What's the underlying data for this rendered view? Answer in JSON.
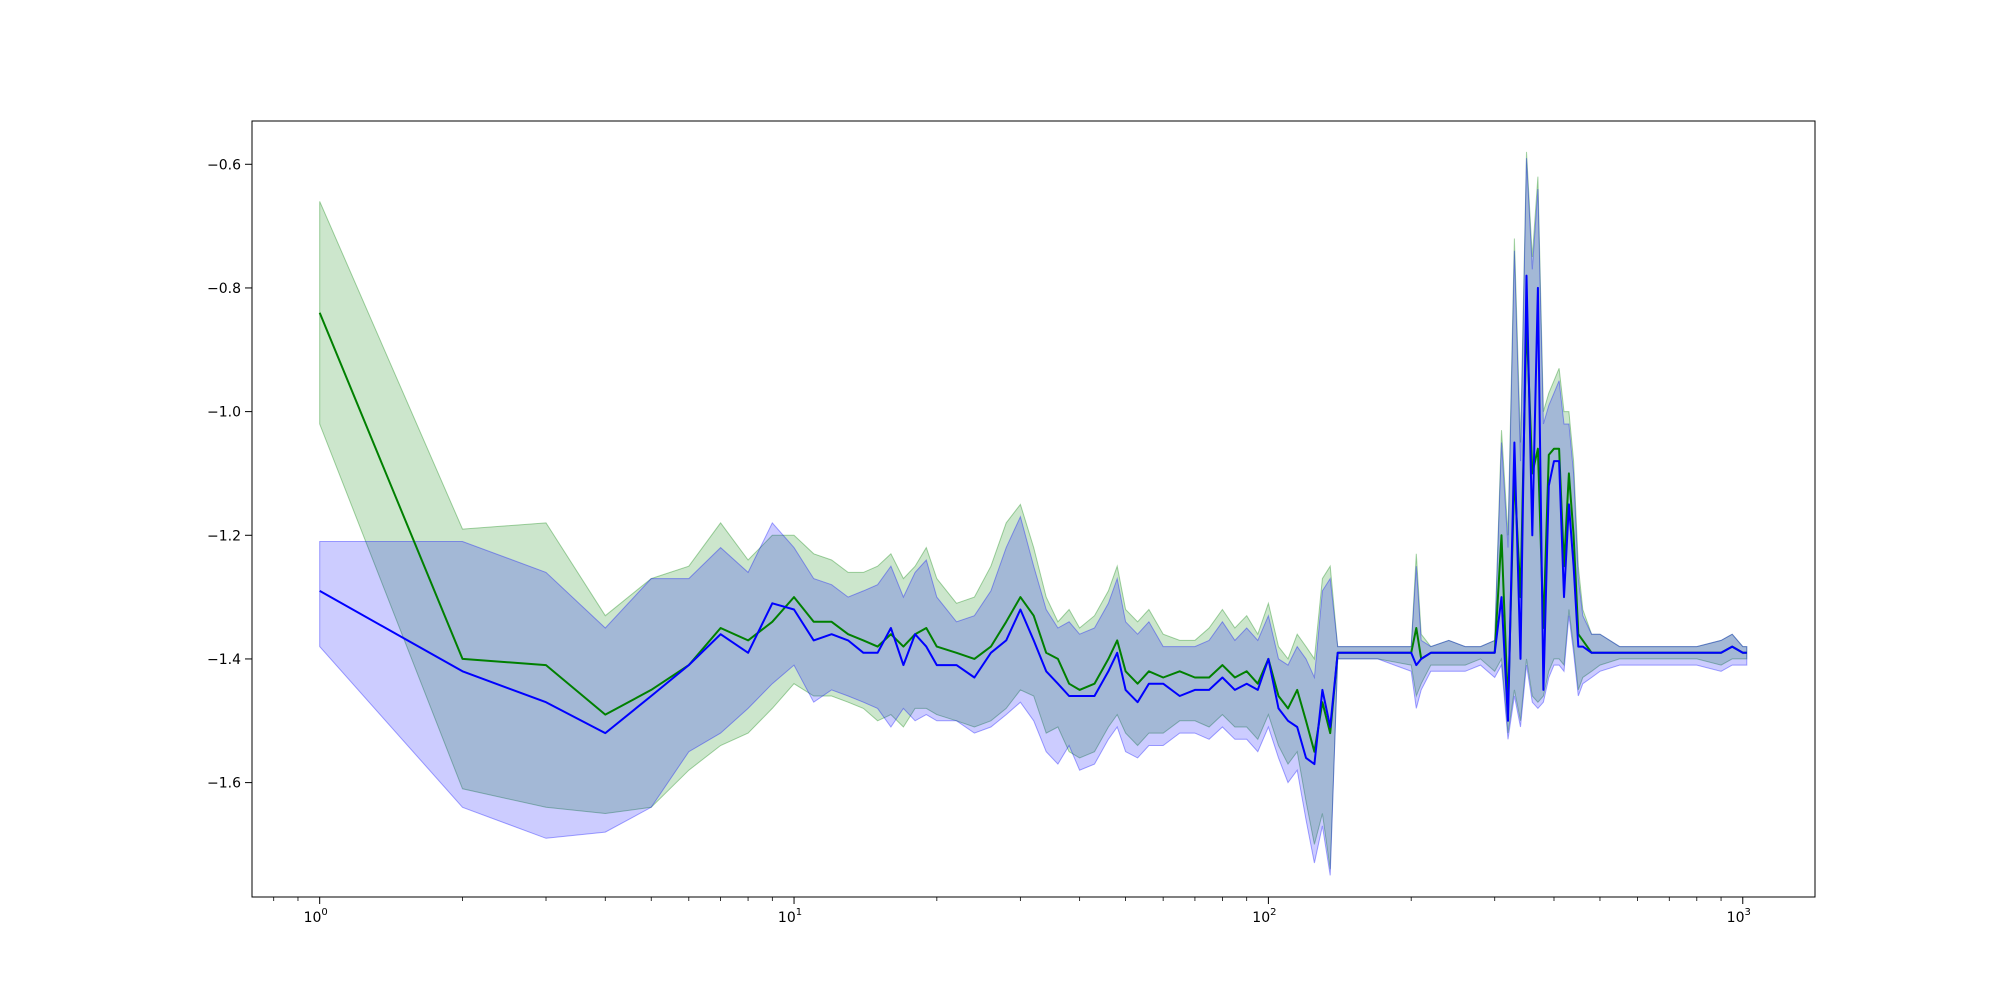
{
  "chart_data": {
    "type": "line",
    "title": "",
    "xlabel": "",
    "ylabel": "",
    "xscale": "log",
    "xlim": [
      0.72,
      1420
    ],
    "ylim": [
      -1.785,
      -0.53
    ],
    "x_ticks": [
      {
        "value": 1,
        "base": "10",
        "exp": "0"
      },
      {
        "value": 10,
        "base": "10",
        "exp": "1"
      },
      {
        "value": 100,
        "base": "10",
        "exp": "2"
      },
      {
        "value": 1000,
        "base": "10",
        "exp": "3"
      }
    ],
    "y_ticks": [
      {
        "value": -0.6,
        "label": "−0.6"
      },
      {
        "value": -0.8,
        "label": "−0.8"
      },
      {
        "value": -1.0,
        "label": "−1.0"
      },
      {
        "value": -1.2,
        "label": "−1.2"
      },
      {
        "value": -1.4,
        "label": "−1.4"
      },
      {
        "value": -1.6,
        "label": "−1.6"
      }
    ],
    "grid": false,
    "legend": "none",
    "series": [
      {
        "color": "#008000",
        "band_color": "#008000",
        "band_opacity": 0.2,
        "x": [
          1,
          2,
          3,
          4,
          5,
          6,
          7,
          8,
          9,
          10,
          11,
          12,
          13,
          14,
          15,
          16,
          17,
          18,
          19,
          20,
          22,
          24,
          26,
          28,
          30,
          32,
          34,
          36,
          38,
          40,
          43,
          46,
          48,
          50,
          53,
          56,
          60,
          65,
          70,
          75,
          80,
          85,
          90,
          95,
          100,
          105,
          110,
          115,
          120,
          125,
          130,
          135,
          140,
          150,
          170,
          200,
          205,
          210,
          220,
          240,
          260,
          280,
          300,
          310,
          320,
          330,
          340,
          350,
          360,
          370,
          380,
          390,
          400,
          410,
          420,
          430,
          440,
          450,
          460,
          480,
          500,
          550,
          600,
          700,
          800,
          900,
          950,
          1000,
          1020
        ],
        "y": [
          -0.84,
          -1.4,
          -1.41,
          -1.49,
          -1.45,
          -1.41,
          -1.35,
          -1.37,
          -1.34,
          -1.3,
          -1.34,
          -1.34,
          -1.36,
          -1.37,
          -1.38,
          -1.36,
          -1.38,
          -1.36,
          -1.35,
          -1.38,
          -1.39,
          -1.4,
          -1.38,
          -1.34,
          -1.3,
          -1.33,
          -1.39,
          -1.4,
          -1.44,
          -1.45,
          -1.44,
          -1.4,
          -1.37,
          -1.42,
          -1.44,
          -1.42,
          -1.43,
          -1.42,
          -1.43,
          -1.43,
          -1.41,
          -1.43,
          -1.42,
          -1.44,
          -1.4,
          -1.46,
          -1.48,
          -1.45,
          -1.5,
          -1.55,
          -1.47,
          -1.52,
          -1.39,
          -1.39,
          -1.39,
          -1.39,
          -1.35,
          -1.4,
          -1.39,
          -1.39,
          -1.39,
          -1.39,
          -1.39,
          -1.2,
          -1.48,
          -1.1,
          -1.3,
          -0.85,
          -1.1,
          -1.06,
          -1.35,
          -1.07,
          -1.06,
          -1.06,
          -1.25,
          -1.1,
          -1.2,
          -1.36,
          -1.37,
          -1.39,
          -1.39,
          -1.39,
          -1.39,
          -1.39,
          -1.39,
          -1.39,
          -1.38,
          -1.39,
          -1.39
        ],
        "upper": [
          -0.66,
          -1.19,
          -1.18,
          -1.33,
          -1.27,
          -1.25,
          -1.18,
          -1.24,
          -1.2,
          -1.2,
          -1.23,
          -1.24,
          -1.26,
          -1.26,
          -1.25,
          -1.23,
          -1.27,
          -1.25,
          -1.22,
          -1.27,
          -1.31,
          -1.3,
          -1.25,
          -1.18,
          -1.15,
          -1.22,
          -1.3,
          -1.34,
          -1.32,
          -1.35,
          -1.33,
          -1.29,
          -1.25,
          -1.32,
          -1.34,
          -1.32,
          -1.36,
          -1.37,
          -1.37,
          -1.35,
          -1.32,
          -1.35,
          -1.33,
          -1.36,
          -1.31,
          -1.38,
          -1.4,
          -1.36,
          -1.38,
          -1.4,
          -1.27,
          -1.25,
          -1.38,
          -1.38,
          -1.38,
          -1.38,
          -1.23,
          -1.36,
          -1.38,
          -1.37,
          -1.38,
          -1.38,
          -1.37,
          -1.03,
          -1.2,
          -0.72,
          -1.05,
          -0.58,
          -0.75,
          -0.62,
          -1.0,
          -0.97,
          -0.95,
          -0.93,
          -1.0,
          -1.0,
          -1.08,
          -1.25,
          -1.32,
          -1.36,
          -1.36,
          -1.38,
          -1.38,
          -1.38,
          -1.38,
          -1.37,
          -1.36,
          -1.38,
          -1.38
        ],
        "lower": [
          -1.02,
          -1.61,
          -1.64,
          -1.65,
          -1.64,
          -1.58,
          -1.54,
          -1.52,
          -1.48,
          -1.44,
          -1.46,
          -1.46,
          -1.47,
          -1.48,
          -1.5,
          -1.49,
          -1.51,
          -1.48,
          -1.48,
          -1.49,
          -1.5,
          -1.51,
          -1.5,
          -1.48,
          -1.45,
          -1.46,
          -1.52,
          -1.51,
          -1.55,
          -1.56,
          -1.55,
          -1.51,
          -1.49,
          -1.52,
          -1.54,
          -1.52,
          -1.52,
          -1.5,
          -1.5,
          -1.51,
          -1.49,
          -1.51,
          -1.51,
          -1.53,
          -1.49,
          -1.54,
          -1.57,
          -1.55,
          -1.63,
          -1.7,
          -1.65,
          -1.74,
          -1.4,
          -1.4,
          -1.4,
          -1.41,
          -1.46,
          -1.44,
          -1.41,
          -1.41,
          -1.41,
          -1.4,
          -1.42,
          -1.4,
          -1.52,
          -1.45,
          -1.5,
          -1.4,
          -1.46,
          -1.47,
          -1.46,
          -1.42,
          -1.4,
          -1.4,
          -1.41,
          -1.32,
          -1.38,
          -1.45,
          -1.43,
          -1.42,
          -1.41,
          -1.4,
          -1.4,
          -1.4,
          -1.4,
          -1.41,
          -1.4,
          -1.4,
          -1.4
        ]
      },
      {
        "color": "#0000ff",
        "band_color": "#0000ff",
        "band_opacity": 0.2,
        "x": [
          1,
          2,
          3,
          4,
          5,
          6,
          7,
          8,
          9,
          10,
          11,
          12,
          13,
          14,
          15,
          16,
          17,
          18,
          19,
          20,
          22,
          24,
          26,
          28,
          30,
          32,
          34,
          36,
          38,
          40,
          43,
          46,
          48,
          50,
          53,
          56,
          60,
          65,
          70,
          75,
          80,
          85,
          90,
          95,
          100,
          105,
          110,
          115,
          120,
          125,
          130,
          135,
          140,
          150,
          170,
          200,
          205,
          210,
          220,
          240,
          260,
          280,
          300,
          310,
          320,
          330,
          340,
          350,
          360,
          370,
          380,
          390,
          400,
          410,
          420,
          430,
          440,
          450,
          460,
          480,
          500,
          550,
          600,
          700,
          800,
          900,
          950,
          1000,
          1020
        ],
        "y": [
          -1.29,
          -1.42,
          -1.47,
          -1.52,
          -1.46,
          -1.41,
          -1.36,
          -1.39,
          -1.31,
          -1.32,
          -1.37,
          -1.36,
          -1.37,
          -1.39,
          -1.39,
          -1.35,
          -1.41,
          -1.36,
          -1.38,
          -1.41,
          -1.41,
          -1.43,
          -1.39,
          -1.37,
          -1.32,
          -1.37,
          -1.42,
          -1.44,
          -1.46,
          -1.46,
          -1.46,
          -1.42,
          -1.39,
          -1.45,
          -1.47,
          -1.44,
          -1.44,
          -1.46,
          -1.45,
          -1.45,
          -1.43,
          -1.45,
          -1.44,
          -1.45,
          -1.4,
          -1.48,
          -1.5,
          -1.51,
          -1.56,
          -1.57,
          -1.45,
          -1.51,
          -1.39,
          -1.39,
          -1.39,
          -1.39,
          -1.41,
          -1.4,
          -1.39,
          -1.39,
          -1.39,
          -1.39,
          -1.39,
          -1.3,
          -1.5,
          -1.05,
          -1.4,
          -0.78,
          -1.2,
          -0.8,
          -1.45,
          -1.12,
          -1.08,
          -1.08,
          -1.3,
          -1.15,
          -1.25,
          -1.38,
          -1.38,
          -1.39,
          -1.39,
          -1.39,
          -1.39,
          -1.39,
          -1.39,
          -1.39,
          -1.38,
          -1.39,
          -1.39
        ],
        "upper": [
          -1.21,
          -1.21,
          -1.26,
          -1.35,
          -1.27,
          -1.27,
          -1.22,
          -1.26,
          -1.18,
          -1.22,
          -1.27,
          -1.28,
          -1.3,
          -1.29,
          -1.28,
          -1.25,
          -1.3,
          -1.26,
          -1.24,
          -1.3,
          -1.34,
          -1.33,
          -1.29,
          -1.22,
          -1.17,
          -1.25,
          -1.32,
          -1.35,
          -1.34,
          -1.36,
          -1.35,
          -1.31,
          -1.27,
          -1.34,
          -1.36,
          -1.34,
          -1.38,
          -1.38,
          -1.38,
          -1.37,
          -1.34,
          -1.37,
          -1.35,
          -1.37,
          -1.33,
          -1.4,
          -1.41,
          -1.38,
          -1.4,
          -1.43,
          -1.29,
          -1.27,
          -1.38,
          -1.38,
          -1.38,
          -1.38,
          -1.25,
          -1.37,
          -1.38,
          -1.37,
          -1.38,
          -1.38,
          -1.37,
          -1.05,
          -1.22,
          -0.74,
          -1.08,
          -0.59,
          -0.77,
          -0.64,
          -1.02,
          -0.99,
          -0.97,
          -0.95,
          -1.02,
          -1.02,
          -1.1,
          -1.27,
          -1.33,
          -1.36,
          -1.36,
          -1.38,
          -1.38,
          -1.38,
          -1.38,
          -1.37,
          -1.36,
          -1.38,
          -1.38
        ],
        "lower": [
          -1.38,
          -1.64,
          -1.69,
          -1.68,
          -1.64,
          -1.55,
          -1.52,
          -1.48,
          -1.44,
          -1.41,
          -1.47,
          -1.45,
          -1.46,
          -1.47,
          -1.48,
          -1.51,
          -1.48,
          -1.5,
          -1.49,
          -1.5,
          -1.5,
          -1.52,
          -1.51,
          -1.49,
          -1.47,
          -1.5,
          -1.55,
          -1.57,
          -1.54,
          -1.58,
          -1.57,
          -1.53,
          -1.51,
          -1.55,
          -1.56,
          -1.54,
          -1.54,
          -1.52,
          -1.52,
          -1.53,
          -1.51,
          -1.53,
          -1.53,
          -1.55,
          -1.51,
          -1.56,
          -1.6,
          -1.58,
          -1.66,
          -1.73,
          -1.67,
          -1.75,
          -1.4,
          -1.4,
          -1.4,
          -1.42,
          -1.48,
          -1.45,
          -1.42,
          -1.42,
          -1.42,
          -1.41,
          -1.43,
          -1.41,
          -1.53,
          -1.46,
          -1.51,
          -1.41,
          -1.47,
          -1.48,
          -1.47,
          -1.43,
          -1.41,
          -1.41,
          -1.42,
          -1.33,
          -1.39,
          -1.46,
          -1.44,
          -1.43,
          -1.42,
          -1.41,
          -1.41,
          -1.41,
          -1.41,
          -1.42,
          -1.41,
          -1.41,
          -1.41
        ]
      }
    ]
  }
}
